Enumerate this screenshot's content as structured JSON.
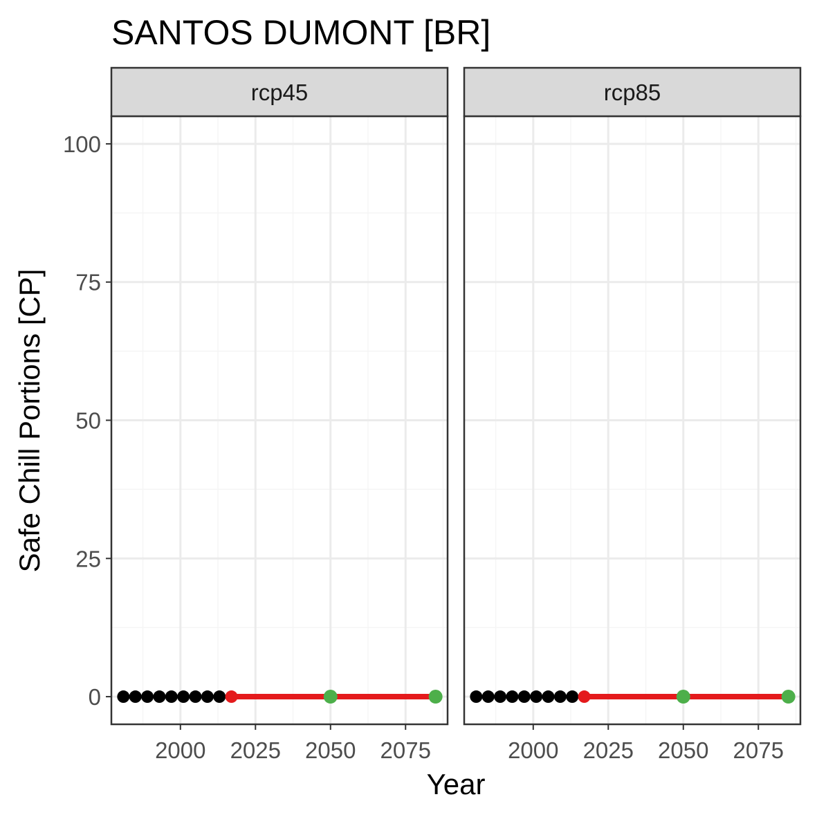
{
  "chart_data": {
    "type": "scatter",
    "title": "SANTOS DUMONT [BR]",
    "xlabel": "Year",
    "ylabel": "Safe Chill Portions [CP]",
    "xlim": [
      1977,
      2089
    ],
    "ylim": [
      -5,
      105
    ],
    "x_ticks": [
      2000,
      2025,
      2050,
      2075
    ],
    "x_tick_labels": [
      "2000",
      "2025",
      "2050",
      "2075"
    ],
    "y_ticks": [
      0,
      25,
      50,
      75,
      100
    ],
    "y_tick_labels": [
      "0",
      "25",
      "50",
      "75",
      "100"
    ],
    "grid": true,
    "legend": "none",
    "colors": {
      "historic": "#000000",
      "future_line": "#e41a1c",
      "scenario_points": "#4daf4a",
      "strip_fill": "#d9d9d9",
      "grid_major": "#ebebeb",
      "grid_minor": "#f5f5f5",
      "panel_border": "#333333"
    },
    "panels": [
      {
        "label": "rcp45",
        "historic": {
          "x": [
            1981,
            1985,
            1989,
            1993,
            1997,
            2001,
            2005,
            2009,
            2013
          ],
          "y": [
            0,
            0,
            0,
            0,
            0,
            0,
            0,
            0,
            0
          ]
        },
        "trend_line": {
          "x": [
            2017,
            2050,
            2085
          ],
          "y": [
            0,
            0,
            0
          ]
        },
        "trend_start": {
          "x": 2017,
          "y": 0
        },
        "scenario_points": {
          "x": [
            2050,
            2085
          ],
          "y": [
            0,
            0
          ]
        }
      },
      {
        "label": "rcp85",
        "historic": {
          "x": [
            1981,
            1985,
            1989,
            1993,
            1997,
            2001,
            2005,
            2009,
            2013
          ],
          "y": [
            0,
            0,
            0,
            0,
            0,
            0,
            0,
            0,
            0
          ]
        },
        "trend_line": {
          "x": [
            2017,
            2050,
            2085
          ],
          "y": [
            0,
            0,
            0
          ]
        },
        "trend_start": {
          "x": 2017,
          "y": 0
        },
        "scenario_points": {
          "x": [
            2050,
            2085
          ],
          "y": [
            0,
            0
          ]
        }
      }
    ]
  }
}
